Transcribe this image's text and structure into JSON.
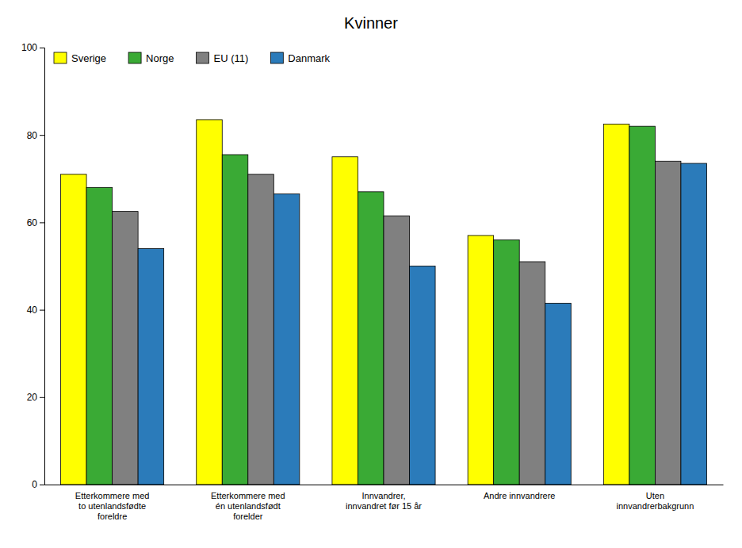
{
  "chart_data": {
    "type": "bar",
    "title": "Kvinner",
    "categories": [
      "Etterkommere med\nto utenlandsfødte\nforeldre",
      "Etterkommere med\nén utenlandsfødt\nforelder",
      "Innvandrer,\ninnvandret før 15 år",
      "Andre innvandrere",
      "Uten\ninnvandrerbakgrunn"
    ],
    "series": [
      {
        "name": "Sverige",
        "color": "#FFFF00",
        "values": [
          71,
          83.5,
          75,
          57,
          82.5
        ]
      },
      {
        "name": "Norge",
        "color": "#3aaa35",
        "values": [
          68,
          75.5,
          67,
          56,
          82
        ]
      },
      {
        "name": "EU (11)",
        "color": "#808080",
        "values": [
          62.5,
          71,
          61.5,
          51,
          74
        ]
      },
      {
        "name": "Danmark",
        "color": "#2b7bba",
        "values": [
          54,
          66.5,
          50,
          41.5,
          73.5
        ]
      }
    ],
    "ylim": [
      0,
      100
    ],
    "yticks": [
      0,
      20,
      40,
      60,
      80,
      100
    ],
    "grid": false,
    "legend": "upper left"
  }
}
